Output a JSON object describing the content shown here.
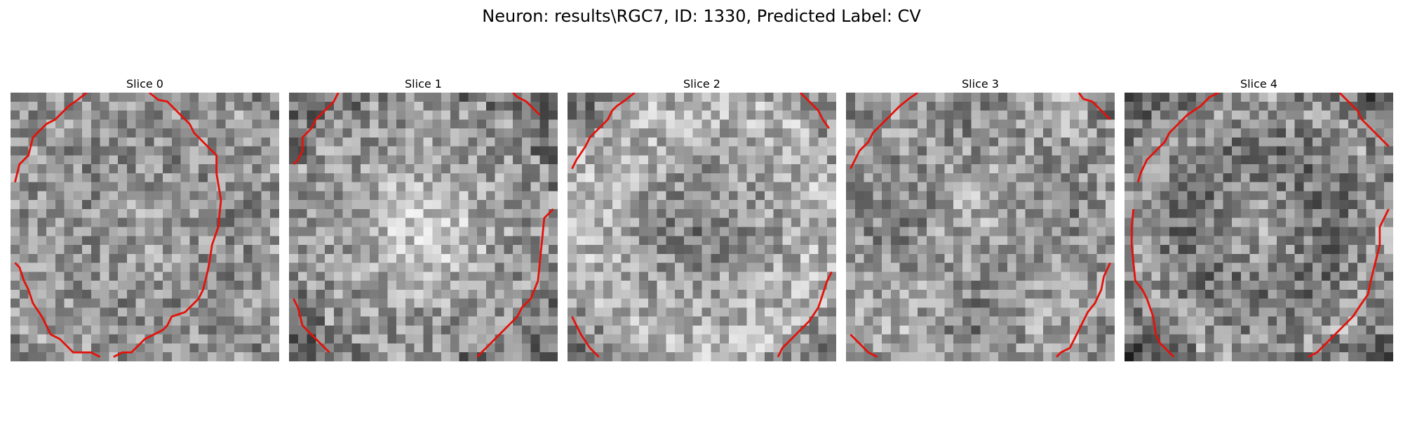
{
  "figure": {
    "title": "Neuron: results\\RGC7, ID: 1330, Predicted Label: CV"
  },
  "panels": [
    {
      "title": "Slice 0",
      "seed": 11,
      "pattern": "ring",
      "contour_color": "#e3120b"
    },
    {
      "title": "Slice 1",
      "seed": 23,
      "pattern": "bright",
      "contour_color": "#e3120b"
    },
    {
      "title": "Slice 2",
      "seed": 37,
      "pattern": "darkcenter",
      "contour_color": "#e3120b"
    },
    {
      "title": "Slice 3",
      "seed": 51,
      "pattern": "mottled",
      "contour_color": "#e3120b"
    },
    {
      "title": "Slice 4",
      "seed": 67,
      "pattern": "ring2",
      "contour_color": "#e3120b"
    }
  ]
}
